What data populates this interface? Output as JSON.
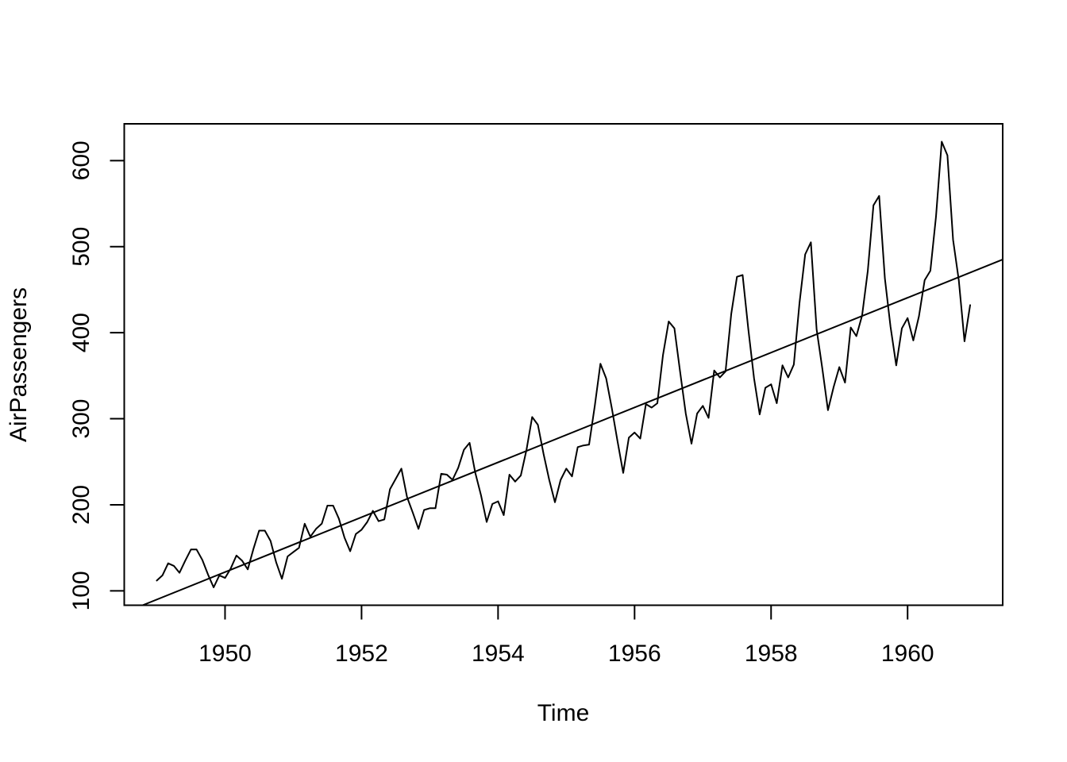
{
  "chart_data": {
    "type": "line",
    "title": "",
    "xlabel": "Time",
    "ylabel": "AirPassengers",
    "grid": false,
    "legend": null,
    "background": "#FFFFFF",
    "line_color": "#000000",
    "x_start": 1949,
    "frequency": 12,
    "x_ticks": [
      1950,
      1952,
      1954,
      1956,
      1958,
      1960
    ],
    "y_ticks": [
      100,
      200,
      300,
      400,
      500,
      600
    ],
    "x_range": [
      1948.5233,
      1961.3933
    ],
    "y_range": [
      83.28,
      642.72
    ],
    "series": [
      {
        "name": "AirPassengers",
        "values": [
          112,
          118,
          132,
          129,
          121,
          135,
          148,
          148,
          136,
          119,
          104,
          118,
          115,
          126,
          141,
          135,
          125,
          149,
          170,
          170,
          158,
          133,
          114,
          140,
          145,
          150,
          178,
          163,
          172,
          178,
          199,
          199,
          184,
          162,
          146,
          166,
          171,
          180,
          193,
          181,
          183,
          218,
          230,
          242,
          209,
          191,
          172,
          194,
          196,
          196,
          236,
          235,
          229,
          243,
          264,
          272,
          237,
          211,
          180,
          201,
          204,
          188,
          235,
          227,
          234,
          264,
          302,
          293,
          259,
          229,
          203,
          229,
          242,
          233,
          267,
          269,
          270,
          315,
          364,
          347,
          312,
          274,
          237,
          278,
          284,
          277,
          317,
          313,
          318,
          374,
          413,
          405,
          355,
          306,
          271,
          306,
          315,
          301,
          356,
          348,
          355,
          422,
          465,
          467,
          404,
          347,
          305,
          336,
          340,
          318,
          362,
          348,
          363,
          435,
          491,
          505,
          404,
          359,
          310,
          337,
          360,
          342,
          406,
          396,
          420,
          472,
          548,
          559,
          463,
          407,
          362,
          405,
          417,
          391,
          419,
          461,
          472,
          535,
          622,
          606,
          508,
          461,
          390,
          432
        ]
      }
    ],
    "trend_line": {
      "slope": 31.886,
      "intercept": -62055.907
    }
  }
}
